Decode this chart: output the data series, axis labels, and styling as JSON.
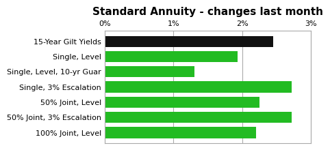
{
  "title": "Standard Annuity - changes last month",
  "categories": [
    "100% Joint, Level",
    "50% Joint, 3% Escalation",
    "50% Joint, Level",
    "Single, 3% Escalation",
    "Single, Level, 10-yr Guar",
    "Single, Level",
    "15-Year Gilt Yields"
  ],
  "values": [
    2.2,
    2.72,
    2.25,
    2.72,
    1.3,
    1.93,
    2.45
  ],
  "colors": [
    "#22bb22",
    "#22bb22",
    "#22bb22",
    "#22bb22",
    "#22bb22",
    "#22bb22",
    "#111111"
  ],
  "xlim": [
    0,
    3
  ],
  "xticks": [
    0,
    1,
    2,
    3
  ],
  "xticklabels": [
    "0%",
    "1%",
    "2%",
    "3%"
  ],
  "background_color": "#ffffff",
  "grid_color": "#aaaaaa",
  "title_fontsize": 11,
  "label_fontsize": 8.0,
  "tick_fontsize": 8.0,
  "bar_height": 0.72
}
